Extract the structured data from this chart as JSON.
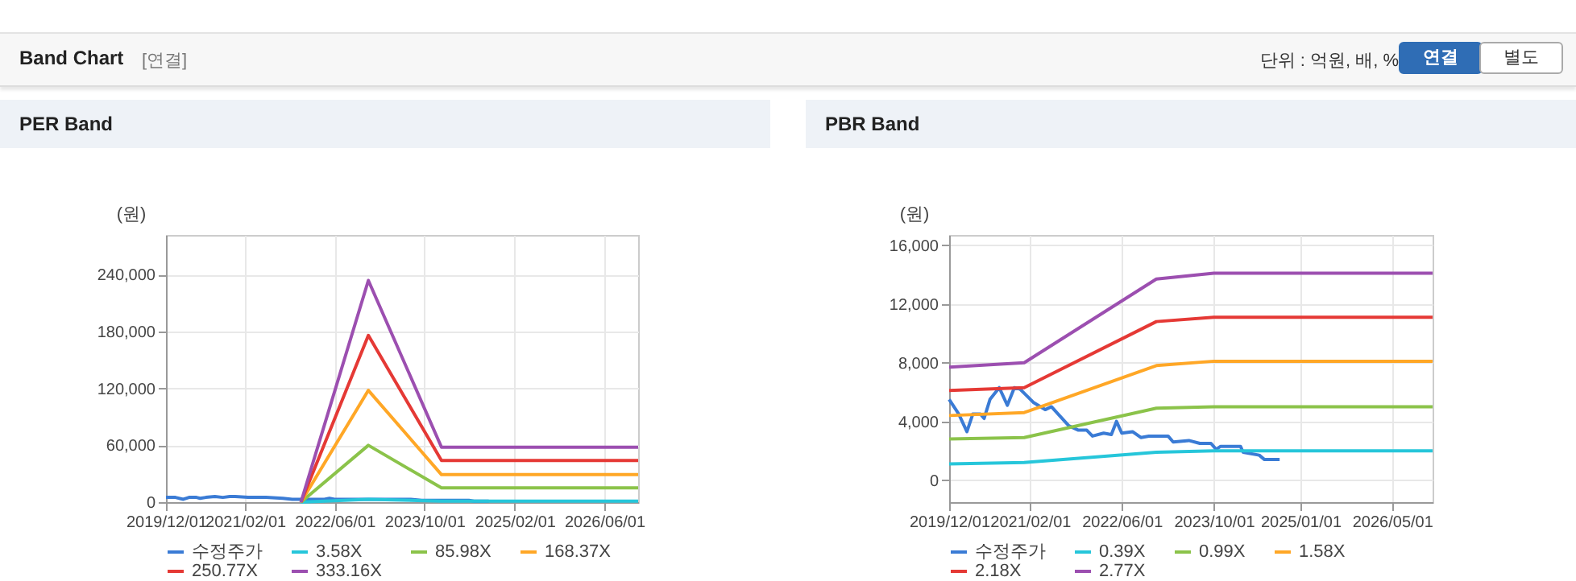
{
  "chart_data": [
    {
      "type": "line",
      "title": "PER Band",
      "ylabel": "(원)",
      "annotations": [
        "Band Chart",
        "[연결]",
        "단위 : 억원, 배, %",
        "연결",
        "별도"
      ],
      "xlim": [
        "2019-12-01",
        "2026-12-01"
      ],
      "xticks": [
        {
          "value": "2019-12-01",
          "label": "2019/12/01"
        },
        {
          "value": "2021-02-01",
          "label": "2021/02/01"
        },
        {
          "value": "2022-06-01",
          "label": "2022/06/01"
        },
        {
          "value": "2023-10-01",
          "label": "2023/10/01"
        },
        {
          "value": "2025-02-01",
          "label": "2025/02/01"
        },
        {
          "value": "2026-06-01",
          "label": "2026/06/01"
        }
      ],
      "ylim": [
        0,
        282000
      ],
      "yticks": [
        0,
        {
          "value": 60000,
          "label": "60,000"
        },
        {
          "value": 120000,
          "label": "120,000"
        },
        {
          "value": 180000,
          "label": "180,000"
        },
        {
          "value": 240000,
          "label": "240,000"
        }
      ],
      "grid": true,
      "legend": "bottom",
      "series": [
        {
          "name": "수정주가",
          "color": "#3a7bd5",
          "x": [
            "2019-12-01",
            "2020-01-21",
            "2020-03-04",
            "2020-04-04",
            "2020-05-14",
            "2020-06-03",
            "2020-07-04",
            "2020-08-22",
            "2020-10-04",
            "2020-11-10",
            "2020-12-10",
            "2021-02-18",
            "2021-04-22",
            "2021-05-25",
            "2021-08-25",
            "2021-10-15",
            "2021-11-28",
            "2021-12-28",
            "2022-02-25",
            "2022-04-07",
            "2022-05-04",
            "2022-06-01",
            "2022-07-28",
            "2022-09-10",
            "2022-10-22",
            "2022-12-04",
            "2023-02-01",
            "2023-02-28",
            "2023-05-22",
            "2023-07-19",
            "2023-09-16",
            "2023-10-13",
            "2023-11-06",
            "2024-01-07",
            "2024-02-19",
            "2024-03-04",
            "2024-05-28",
            "2024-06-25",
            "2024-09-13"
          ],
          "values": [
            5000,
            5000,
            3000,
            5000,
            5000,
            4000,
            5000,
            6000,
            5000,
            6000,
            6000,
            5000,
            5000,
            5000,
            4000,
            3000,
            3000,
            3000,
            3000,
            3000,
            4000,
            3000,
            3000,
            3000,
            3000,
            3000,
            3000,
            3000,
            3000,
            3000,
            2000,
            2000,
            2000,
            2000,
            2000,
            2000,
            2000,
            1000,
            1000
          ]
        },
        {
          "name": "3.58X",
          "color": "#26c6da",
          "x": [
            "2021-12-01",
            "2022-12-01",
            "2024-01-01",
            "2026-12-01"
          ],
          "values": [
            0,
            3000,
            1000,
            1000
          ]
        },
        {
          "name": "85.98X",
          "color": "#8bc34a",
          "x": [
            "2021-12-01",
            "2022-12-01",
            "2024-01-01",
            "2026-12-01"
          ],
          "values": [
            0,
            60000,
            15000,
            15000
          ]
        },
        {
          "name": "168.37X",
          "color": "#ffa726",
          "x": [
            "2021-12-01",
            "2022-12-01",
            "2024-01-01",
            "2026-12-01"
          ],
          "values": [
            0,
            118000,
            29000,
            29000
          ]
        },
        {
          "name": "250.77X",
          "color": "#e53935",
          "x": [
            "2021-12-01",
            "2022-12-01",
            "2024-01-01",
            "2026-12-01"
          ],
          "values": [
            0,
            176000,
            44000,
            44000
          ]
        },
        {
          "name": "333.16X",
          "color": "#9c4fb0",
          "x": [
            "2021-12-01",
            "2022-12-01",
            "2024-01-01",
            "2026-12-01"
          ],
          "values": [
            0,
            234000,
            58000,
            58000
          ]
        }
      ]
    },
    {
      "type": "line",
      "title": "PBR Band",
      "ylabel": "(원)",
      "xlim": [
        "2019-12-01",
        "2026-12-01"
      ],
      "xticks": [
        {
          "value": "2019-12-01",
          "label": "2019/12/01"
        },
        {
          "value": "2021-02-01",
          "label": "2021/02/01"
        },
        {
          "value": "2022-06-01",
          "label": "2022/06/01"
        },
        {
          "value": "2023-10-01",
          "label": "2023/10/01"
        },
        {
          "value": "2025-01-01",
          "label": "2025/01/01"
        },
        {
          "value": "2026-05-01",
          "label": "2026/05/01"
        }
      ],
      "ylim": [
        -1500,
        16700
      ],
      "yticks": [
        0,
        {
          "value": 4000,
          "label": "4,000"
        },
        {
          "value": 8000,
          "label": "8,000"
        },
        {
          "value": 12000,
          "label": "12,000"
        },
        {
          "value": 16000,
          "label": "16,000"
        }
      ],
      "grid": true,
      "legend": "bottom",
      "series": [
        {
          "name": "수정주가",
          "color": "#3a7bd5",
          "x": [
            "2019-12-01",
            "2020-01-21",
            "2020-03-04",
            "2020-04-04",
            "2020-05-14",
            "2020-06-03",
            "2020-07-04",
            "2020-08-22",
            "2020-10-04",
            "2020-11-10",
            "2020-12-10",
            "2021-02-18",
            "2021-04-22",
            "2021-05-25",
            "2021-08-25",
            "2021-10-15",
            "2021-11-28",
            "2021-12-28",
            "2022-02-25",
            "2022-04-07",
            "2022-05-04",
            "2022-06-01",
            "2022-07-28",
            "2022-09-10",
            "2022-10-22",
            "2022-12-04",
            "2023-02-01",
            "2023-02-28",
            "2023-05-22",
            "2023-07-19",
            "2023-09-16",
            "2023-10-13",
            "2023-11-06",
            "2024-01-07",
            "2024-02-19",
            "2024-03-04",
            "2024-05-28",
            "2024-06-25",
            "2024-09-13"
          ],
          "values": [
            5500,
            4500,
            3300,
            4500,
            4500,
            4200,
            5500,
            6300,
            5100,
            6300,
            6200,
            5300,
            4800,
            5000,
            3700,
            3400,
            3400,
            3000,
            3200,
            3100,
            4000,
            3200,
            3300,
            2900,
            3000,
            3000,
            3000,
            2600,
            2700,
            2500,
            2500,
            2100,
            2300,
            2300,
            2300,
            1900,
            1700,
            1400,
            1400
          ]
        },
        {
          "name": "0.39X",
          "color": "#26c6da",
          "x": [
            "2019-12-01",
            "2021-01-01",
            "2022-12-01",
            "2023-10-01",
            "2026-12-01"
          ],
          "values": [
            1100,
            1200,
            1900,
            2000,
            2000
          ]
        },
        {
          "name": "0.99X",
          "color": "#8bc34a",
          "x": [
            "2019-12-01",
            "2021-01-01",
            "2022-12-01",
            "2023-10-01",
            "2026-12-01"
          ],
          "values": [
            2800,
            2900,
            4900,
            5000,
            5000
          ]
        },
        {
          "name": "1.58X",
          "color": "#ffa726",
          "x": [
            "2019-12-01",
            "2021-01-01",
            "2022-12-01",
            "2023-10-01",
            "2026-12-01"
          ],
          "values": [
            4400,
            4600,
            7800,
            8100,
            8100
          ]
        },
        {
          "name": "2.18X",
          "color": "#e53935",
          "x": [
            "2019-12-01",
            "2021-01-01",
            "2022-12-01",
            "2023-10-01",
            "2026-12-01"
          ],
          "values": [
            6100,
            6300,
            10800,
            11100,
            11100
          ]
        },
        {
          "name": "2.77X",
          "color": "#9c4fb0",
          "x": [
            "2019-12-01",
            "2021-01-01",
            "2022-12-01",
            "2023-10-01",
            "2026-12-01"
          ],
          "values": [
            7700,
            8000,
            13700,
            14100,
            14100
          ]
        }
      ]
    }
  ]
}
